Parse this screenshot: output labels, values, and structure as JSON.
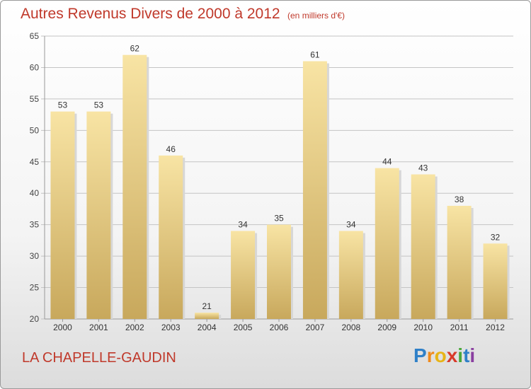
{
  "title": "Autres Revenus Divers de 2000 à 2012",
  "subtitle": "(en milliers d'€)",
  "town": "LA CHAPELLE-GAUDIN",
  "logo": {
    "letters": [
      "P",
      "r",
      "o",
      "x",
      "i",
      "t",
      "i"
    ],
    "colors": [
      "#2f80c8",
      "#f08a1c",
      "#e8b416",
      "#d83a2a",
      "#4aa83a",
      "#2f80c8",
      "#8a3fa0"
    ]
  },
  "colors": {
    "title": "#c0392b",
    "bar_light": "#f8e4a4",
    "bar_dark": "#c8a85c"
  },
  "chart_data": {
    "type": "bar",
    "categories": [
      "2000",
      "2001",
      "2002",
      "2003",
      "2004",
      "2005",
      "2006",
      "2007",
      "2008",
      "2009",
      "2010",
      "2011",
      "2012"
    ],
    "values": [
      53,
      53,
      62,
      46,
      21,
      34,
      35,
      61,
      34,
      44,
      43,
      38,
      32
    ],
    "ylim": [
      20,
      65
    ],
    "yticks": [
      20,
      25,
      30,
      35,
      40,
      45,
      50,
      55,
      60,
      65
    ],
    "grid": true,
    "legend": "none"
  }
}
